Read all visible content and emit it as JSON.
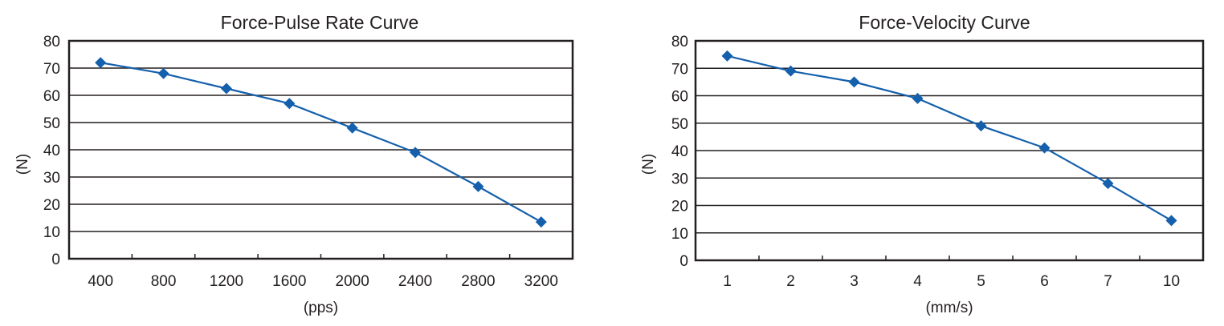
{
  "colors": {
    "series": "#1560ac",
    "axis": "#231f20"
  },
  "chart_data": [
    {
      "type": "line",
      "title": "Force-Pulse Rate Curve",
      "xlabel": "(pps)",
      "ylabel": "(N)",
      "categories": [
        "400",
        "800",
        "1200",
        "1600",
        "2000",
        "2400",
        "2800",
        "3200"
      ],
      "y_ticks": [
        "0",
        "10",
        "20",
        "30",
        "40",
        "50",
        "60",
        "70",
        "80"
      ],
      "ylim": [
        0,
        80
      ],
      "grid": true,
      "marker": "diamond",
      "series": [
        {
          "values": [
            72,
            68,
            62.5,
            57,
            48,
            39,
            26.5,
            13.5
          ]
        }
      ]
    },
    {
      "type": "line",
      "title": "Force-Velocity Curve",
      "xlabel": "(mm/s)",
      "ylabel": "(N)",
      "categories": [
        "1",
        "2",
        "3",
        "4",
        "5",
        "6",
        "7",
        "10"
      ],
      "y_ticks": [
        "0",
        "10",
        "20",
        "30",
        "40",
        "50",
        "60",
        "70",
        "80"
      ],
      "ylim": [
        0,
        80
      ],
      "grid": true,
      "marker": "diamond",
      "series": [
        {
          "values": [
            74.5,
            69,
            65,
            59,
            49,
            41,
            28,
            14.5
          ]
        }
      ]
    }
  ]
}
